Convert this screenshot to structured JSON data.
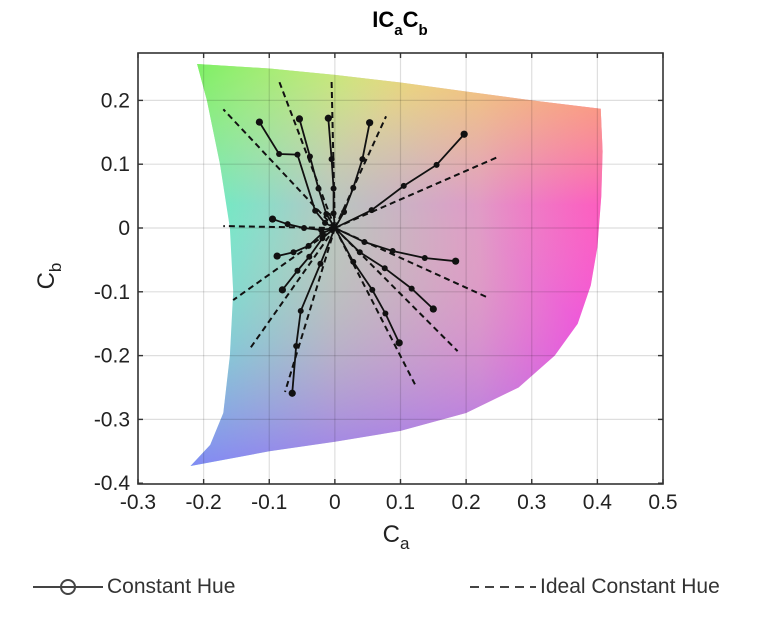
{
  "chart_data": {
    "type": "line",
    "title": "IC_aC_b",
    "title_parts": {
      "main": "IC",
      "sub1": "a",
      "mid": "C",
      "sub2": "b"
    },
    "xlabel": "C_a",
    "xlabel_parts": {
      "main": "C",
      "sub": "a"
    },
    "ylabel": "C_b",
    "ylabel_parts": {
      "main": "C",
      "sub": "b"
    },
    "xlim": [
      -0.3,
      0.5
    ],
    "ylim": [
      -0.4,
      0.275
    ],
    "xticks": [
      -0.3,
      -0.2,
      -0.1,
      0,
      0.1,
      0.2,
      0.3,
      0.4,
      0.5
    ],
    "xtick_labels": [
      "-0.3",
      "-0.2",
      "-0.1",
      "0",
      "0.1",
      "0.2",
      "0.3",
      "0.4",
      "0.5"
    ],
    "yticks": [
      0.2,
      0.1,
      0,
      -0.1,
      -0.2,
      -0.3,
      -0.4
    ],
    "ytick_labels": [
      "0.2",
      "0.1",
      "0",
      "-0.1",
      "-0.2",
      "-0.3",
      "-0.4"
    ],
    "grid": true,
    "legend_position": "bottom",
    "legend": [
      {
        "label": "Constant Hue",
        "style": "solid-circle"
      },
      {
        "label": "Ideal Constant Hue",
        "style": "dashed"
      }
    ],
    "gamut_boundary": [
      [
        -0.21,
        0.257
      ],
      [
        -0.1,
        0.25
      ],
      [
        0.0,
        0.24
      ],
      [
        0.1,
        0.228
      ],
      [
        0.2,
        0.214
      ],
      [
        0.3,
        0.2
      ],
      [
        0.405,
        0.187
      ],
      [
        0.408,
        0.12
      ],
      [
        0.406,
        0.05
      ],
      [
        0.4,
        -0.03
      ],
      [
        0.39,
        -0.09
      ],
      [
        0.37,
        -0.15
      ],
      [
        0.335,
        -0.2
      ],
      [
        0.28,
        -0.25
      ],
      [
        0.2,
        -0.29
      ],
      [
        0.1,
        -0.318
      ],
      [
        0.0,
        -0.335
      ],
      [
        -0.1,
        -0.35
      ],
      [
        -0.22,
        -0.373
      ],
      [
        -0.19,
        -0.34
      ],
      [
        -0.17,
        -0.29
      ],
      [
        -0.16,
        -0.2
      ],
      [
        -0.155,
        -0.1
      ],
      [
        -0.16,
        0.0
      ],
      [
        -0.175,
        0.1
      ],
      [
        -0.195,
        0.2
      ],
      [
        -0.21,
        0.257
      ]
    ],
    "series": [
      {
        "name": "Constant Hue",
        "lines": [
          [
            [
              0,
              0
            ],
            [
              -0.015,
              0.008
            ],
            [
              -0.03,
              0.027
            ],
            [
              -0.057,
              0.115
            ],
            [
              -0.085,
              0.116
            ],
            [
              -0.115,
              0.166
            ]
          ],
          [
            [
              0,
              0
            ],
            [
              -0.013,
              0.022
            ],
            [
              -0.025,
              0.062
            ],
            [
              -0.038,
              0.112
            ],
            [
              -0.054,
              0.171
            ]
          ],
          [
            [
              0,
              0
            ],
            [
              -0.002,
              0.023
            ],
            [
              -0.002,
              0.062
            ],
            [
              -0.005,
              0.108
            ],
            [
              -0.01,
              0.172
            ]
          ],
          [
            [
              0,
              0
            ],
            [
              0.014,
              0.025
            ],
            [
              0.028,
              0.063
            ],
            [
              0.042,
              0.108
            ],
            [
              0.053,
              0.165
            ]
          ],
          [
            [
              0,
              0
            ],
            [
              0.056,
              0.028
            ],
            [
              0.105,
              0.066
            ],
            [
              0.155,
              0.099
            ],
            [
              0.197,
              0.147
            ]
          ],
          [
            [
              0,
              0
            ],
            [
              0.045,
              -0.022
            ],
            [
              0.088,
              -0.036
            ],
            [
              0.137,
              -0.047
            ],
            [
              0.184,
              -0.052
            ]
          ],
          [
            [
              0,
              0
            ],
            [
              0.038,
              -0.038
            ],
            [
              0.076,
              -0.063
            ],
            [
              0.117,
              -0.095
            ],
            [
              0.15,
              -0.127
            ]
          ],
          [
            [
              0,
              0
            ],
            [
              0.028,
              -0.053
            ],
            [
              0.057,
              -0.097
            ],
            [
              0.077,
              -0.134
            ],
            [
              0.098,
              -0.18
            ]
          ],
          [
            [
              0,
              0
            ],
            [
              -0.022,
              -0.056
            ],
            [
              -0.052,
              -0.13
            ],
            [
              -0.059,
              -0.185
            ],
            [
              -0.065,
              -0.259
            ]
          ],
          [
            [
              0,
              0
            ],
            [
              -0.019,
              -0.016
            ],
            [
              -0.039,
              -0.045
            ],
            [
              -0.057,
              -0.067
            ],
            [
              -0.08,
              -0.097
            ]
          ],
          [
            [
              0,
              0
            ],
            [
              -0.019,
              -0.008
            ],
            [
              -0.04,
              -0.028
            ],
            [
              -0.063,
              -0.038
            ],
            [
              -0.088,
              -0.044
            ]
          ],
          [
            [
              0,
              0
            ],
            [
              -0.021,
              -0.003
            ],
            [
              -0.047,
              0.0
            ],
            [
              -0.072,
              0.006
            ],
            [
              -0.095,
              0.014
            ]
          ]
        ]
      },
      {
        "name": "Ideal Constant Hue",
        "lines": [
          [
            [
              0,
              0
            ],
            [
              -0.17,
              0.186
            ]
          ],
          [
            [
              0,
              0
            ],
            [
              -0.085,
              0.23
            ]
          ],
          [
            [
              0,
              0
            ],
            [
              -0.005,
              0.23
            ]
          ],
          [
            [
              0,
              0
            ],
            [
              0.078,
              0.175
            ]
          ],
          [
            [
              0,
              0
            ],
            [
              0.25,
              0.112
            ]
          ],
          [
            [
              0,
              0
            ],
            [
              -0.17,
              0.003
            ]
          ],
          [
            [
              0,
              0
            ],
            [
              -0.155,
              -0.113
            ]
          ],
          [
            [
              0,
              0
            ],
            [
              -0.128,
              -0.187
            ]
          ],
          [
            [
              0,
              0
            ],
            [
              -0.076,
              -0.257
            ]
          ],
          [
            [
              0,
              0
            ],
            [
              0.122,
              -0.245
            ]
          ],
          [
            [
              0,
              0
            ],
            [
              0.187,
              -0.193
            ]
          ],
          [
            [
              0,
              0
            ],
            [
              0.233,
              -0.109
            ]
          ]
        ]
      }
    ]
  },
  "legend": {
    "constant_hue": "Constant Hue",
    "ideal_constant_hue": "Ideal Constant Hue"
  }
}
